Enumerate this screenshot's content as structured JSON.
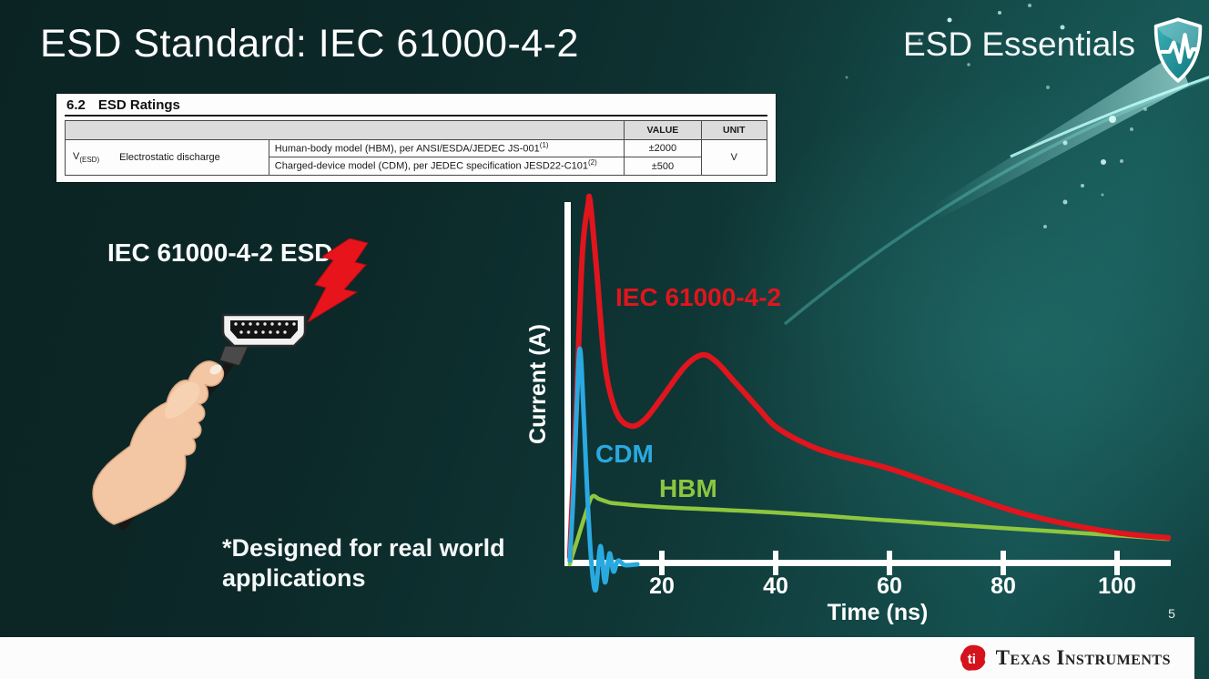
{
  "slide": {
    "title": "ESD Standard: IEC 61000-4-2",
    "brand": "ESD Essentials",
    "page_number": "5",
    "footer_logo": "Texas Instruments",
    "logo_monogram": "ti"
  },
  "datasheet_table": {
    "section_number": "6.2",
    "section_title": "ESD Ratings",
    "col_value": "VALUE",
    "col_unit": "UNIT",
    "param_symbol": "V",
    "param_symbol_sub": "(ESD)",
    "param_name": "Electrostatic discharge",
    "rows": [
      {
        "description": "Human-body model (HBM), per ANSI/ESDA/JEDEC JS-001",
        "superscript": "(1)",
        "value": "±2000"
      },
      {
        "description": "Charged-device model (CDM), per JEDEC specification JESD22-C101",
        "superscript": "(2)",
        "value": "±500"
      }
    ],
    "unit": "V"
  },
  "illustration": {
    "label": "IEC 61000-4-2 ESD",
    "note": "*Designed for real world applications"
  },
  "chart_data": {
    "type": "line",
    "title": "",
    "xlabel": "Time (ns)",
    "ylabel": "Current (A)",
    "x_ticks": [
      "20",
      "40",
      "60",
      "80",
      "100"
    ],
    "xlim": [
      0,
      110
    ],
    "ylim_relative": [
      -0.1,
      1.05
    ],
    "grid": false,
    "legend_position": "inline-curve-labels",
    "axis_color": "#ffffff",
    "series": [
      {
        "name": "IEC 61000-4-2",
        "color": "#e0151d",
        "points": [
          [
            3.8,
            0.02
          ],
          [
            5.0,
            0.45
          ],
          [
            6.0,
            0.85
          ],
          [
            7.0,
            0.99
          ],
          [
            7.4,
            1.0
          ],
          [
            8.5,
            0.82
          ],
          [
            10,
            0.55
          ],
          [
            12,
            0.42
          ],
          [
            14.5,
            0.382
          ],
          [
            17,
            0.4
          ],
          [
            20,
            0.46
          ],
          [
            24,
            0.545
          ],
          [
            27,
            0.578
          ],
          [
            29.5,
            0.56
          ],
          [
            33,
            0.5
          ],
          [
            37,
            0.43
          ],
          [
            40,
            0.38
          ],
          [
            45,
            0.335
          ],
          [
            50,
            0.305
          ],
          [
            60,
            0.264
          ],
          [
            70,
            0.21
          ],
          [
            81,
            0.151
          ],
          [
            90,
            0.115
          ],
          [
            100,
            0.087
          ],
          [
            109,
            0.073
          ]
        ]
      },
      {
        "name": "CDM",
        "color": "#2aa9e0",
        "points": [
          [
            3.8,
            0.01
          ],
          [
            4.4,
            0.18
          ],
          [
            5.0,
            0.42
          ],
          [
            5.6,
            0.595
          ],
          [
            6.3,
            0.4
          ],
          [
            7.0,
            0.16
          ],
          [
            7.7,
            -0.01
          ],
          [
            8.4,
            -0.07
          ],
          [
            9.2,
            0.05
          ],
          [
            10.0,
            -0.05
          ],
          [
            10.8,
            0.03
          ],
          [
            11.5,
            -0.02
          ],
          [
            12.3,
            0.01
          ],
          [
            13.5,
            -0.002
          ],
          [
            15.7,
            0.0
          ]
        ]
      },
      {
        "name": "HBM",
        "color": "#8dc63f",
        "points": [
          [
            3.8,
            0.0
          ],
          [
            5.0,
            0.06
          ],
          [
            6.4,
            0.13
          ],
          [
            7.7,
            0.186
          ],
          [
            9.0,
            0.18
          ],
          [
            10.5,
            0.172
          ],
          [
            12,
            0.168
          ],
          [
            20,
            0.158
          ],
          [
            40,
            0.143
          ],
          [
            60,
            0.121
          ],
          [
            80,
            0.1
          ],
          [
            100,
            0.08
          ],
          [
            109,
            0.07
          ]
        ]
      }
    ]
  }
}
